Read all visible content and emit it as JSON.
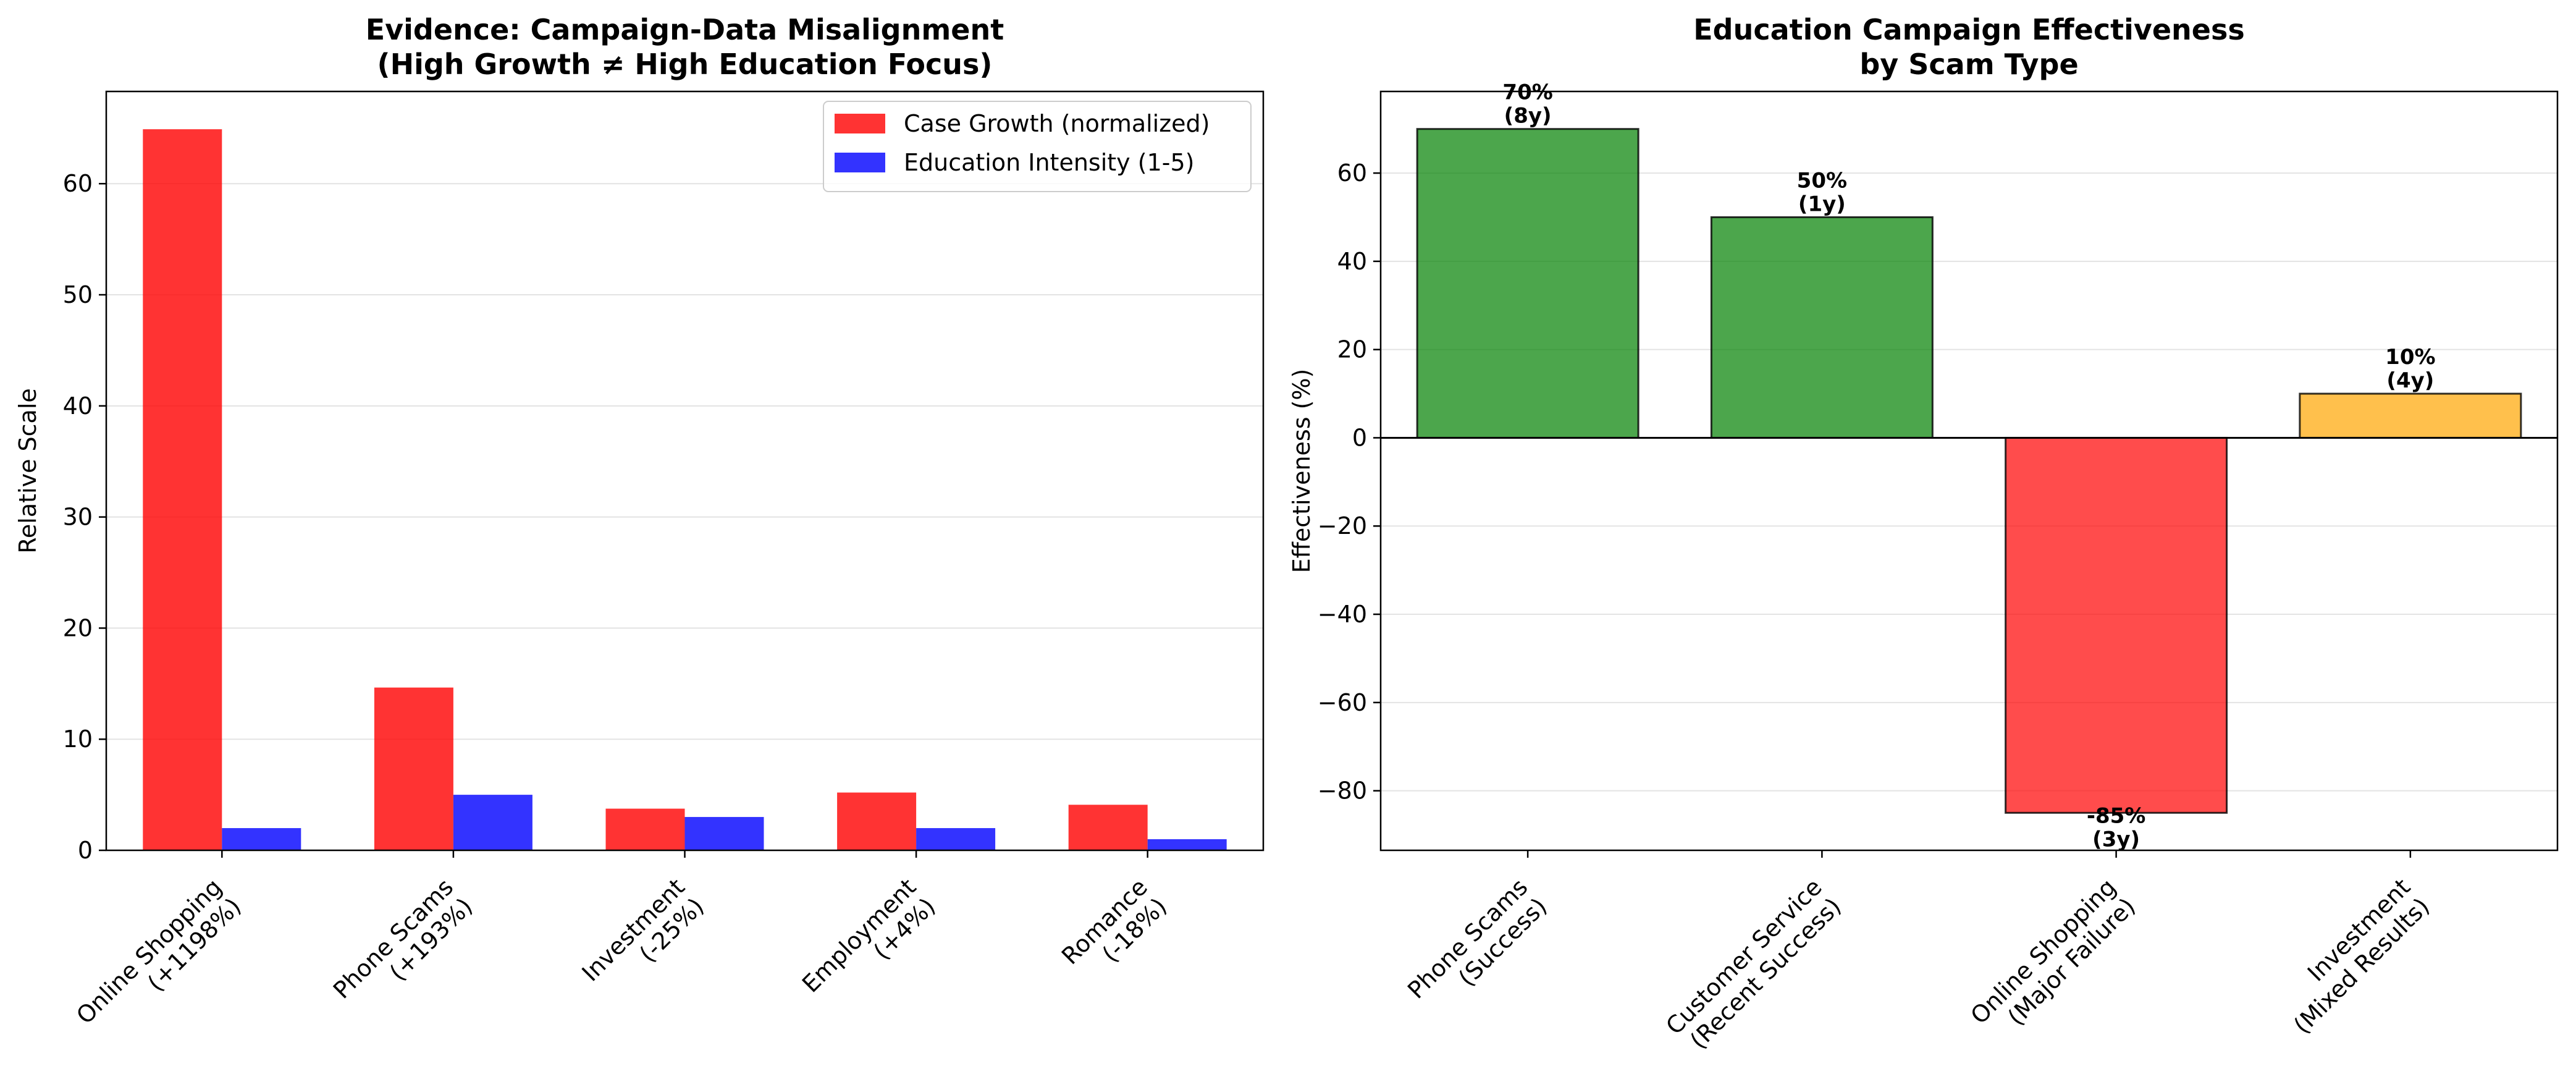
{
  "chart_data": [
    {
      "type": "bar",
      "title": "Evidence: Campaign-Data Misalignment\n(High Growth ≠ High Education Focus)",
      "xlabel": "",
      "ylabel": "Relative Scale",
      "categories": [
        "Online Shopping\n(+1198%)",
        "Phone Scams\n(+193%)",
        "Investment\n(-25%)",
        "Employment\n(+4%)",
        "Romance\n(-18%)"
      ],
      "series": [
        {
          "name": "Case Growth (normalized)",
          "color": "#ff0000",
          "values": [
            64.9,
            14.65,
            3.75,
            5.2,
            4.1
          ]
        },
        {
          "name": "Education Intensity (1-5)",
          "color": "#0000ff",
          "values": [
            2,
            5,
            3,
            2,
            1
          ]
        }
      ],
      "ylim": [
        0,
        68.3
      ],
      "yticks": [
        0,
        10,
        20,
        30,
        40,
        50,
        60
      ],
      "grid": "horizontal",
      "legend": "top-right"
    },
    {
      "type": "bar",
      "title": "Education Campaign Effectiveness\nby Scam Type",
      "xlabel": "",
      "ylabel": "Effectiveness (%)",
      "categories": [
        "Phone Scams\n(Success)",
        "Customer Service\n(Recent Success)",
        "Online Shopping\n(Major Failure)",
        "Investment\n(Mixed Results)"
      ],
      "values": [
        70,
        50,
        -85,
        10
      ],
      "colors": [
        "#008000",
        "#008000",
        "#ff0000",
        "#ffa500"
      ],
      "data_labels": [
        "70%\n(8y)",
        "50%\n(1y)",
        "-85%\n(3y)",
        "10%\n(4y)"
      ],
      "ylim": [
        -93.5,
        78.5
      ],
      "yticks": [
        -80,
        -60,
        -40,
        -20,
        0,
        20,
        40,
        60
      ],
      "zero_line": true,
      "grid": "horizontal"
    }
  ]
}
